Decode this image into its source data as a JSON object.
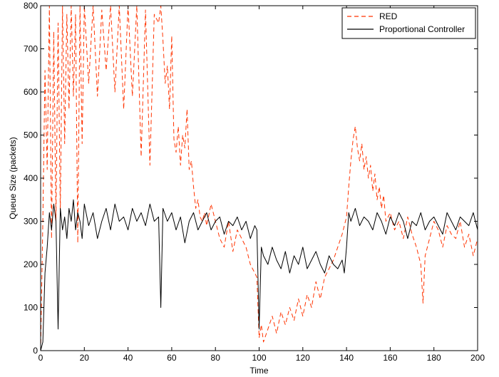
{
  "chart_data": {
    "type": "line",
    "title": "",
    "xlabel": "Time",
    "ylabel": "Queue Size (packets)",
    "xlim": [
      0,
      200
    ],
    "ylim": [
      0,
      800
    ],
    "xticks": [
      0,
      20,
      40,
      60,
      80,
      100,
      120,
      140,
      160,
      180,
      200
    ],
    "yticks": [
      0,
      100,
      200,
      300,
      400,
      500,
      600,
      700,
      800
    ],
    "grid": false,
    "legend_position": "top-right",
    "series": [
      {
        "name": "RED",
        "color": "#ff3300",
        "dash": "dashed",
        "x": [
          0,
          1,
          2,
          3,
          4,
          5,
          6,
          7,
          8,
          9,
          10,
          11,
          12,
          13,
          14,
          15,
          16,
          17,
          18,
          19,
          20,
          22,
          24,
          26,
          28,
          30,
          32,
          34,
          36,
          38,
          40,
          42,
          44,
          46,
          48,
          50,
          52,
          54,
          55,
          56,
          57,
          58,
          59,
          60,
          61,
          62,
          63,
          64,
          65,
          66,
          67,
          68,
          69,
          70,
          71,
          72,
          73,
          74,
          75,
          76,
          78,
          80,
          82,
          84,
          86,
          88,
          90,
          92,
          94,
          96,
          98,
          99,
          100,
          101,
          102,
          104,
          106,
          108,
          110,
          112,
          114,
          116,
          118,
          120,
          122,
          124,
          126,
          128,
          130,
          132,
          134,
          136,
          138,
          140,
          141,
          142,
          143,
          144,
          145,
          146,
          147,
          148,
          149,
          150,
          151,
          152,
          153,
          154,
          155,
          156,
          157,
          158,
          160,
          162,
          164,
          166,
          168,
          170,
          172,
          174,
          175,
          176,
          178,
          180,
          182,
          184,
          186,
          188,
          190,
          192,
          194,
          196,
          198,
          200
        ],
        "y": [
          0,
          300,
          650,
          420,
          800,
          260,
          740,
          300,
          760,
          320,
          800,
          480,
          780,
          560,
          800,
          590,
          780,
          250,
          800,
          480,
          800,
          620,
          800,
          590,
          790,
          650,
          800,
          600,
          800,
          560,
          800,
          590,
          800,
          450,
          790,
          430,
          780,
          760,
          800,
          720,
          620,
          660,
          560,
          730,
          490,
          460,
          520,
          430,
          500,
          470,
          560,
          420,
          440,
          380,
          330,
          350,
          310,
          300,
          320,
          290,
          340,
          300,
          260,
          240,
          300,
          230,
          280,
          260,
          240,
          200,
          180,
          170,
          30,
          60,
          20,
          50,
          80,
          40,
          90,
          60,
          100,
          70,
          120,
          80,
          130,
          100,
          160,
          120,
          170,
          190,
          210,
          240,
          270,
          310,
          380,
          440,
          490,
          520,
          470,
          440,
          480,
          420,
          450,
          400,
          430,
          370,
          410,
          350,
          380,
          330,
          360,
          300,
          320,
          280,
          300,
          260,
          310,
          270,
          240,
          200,
          110,
          220,
          260,
          300,
          280,
          240,
          290,
          270,
          260,
          300,
          240,
          270,
          220,
          260
        ]
      },
      {
        "name": "Proportional Controller",
        "color": "#000000",
        "dash": "solid",
        "x": [
          0,
          1,
          2,
          3,
          4,
          5,
          6,
          7,
          8,
          9,
          10,
          11,
          12,
          13,
          14,
          15,
          16,
          17,
          18,
          19,
          20,
          22,
          24,
          26,
          28,
          30,
          32,
          34,
          36,
          38,
          40,
          42,
          44,
          46,
          48,
          50,
          52,
          54,
          55,
          56,
          58,
          60,
          62,
          64,
          66,
          68,
          70,
          72,
          74,
          76,
          78,
          80,
          82,
          84,
          86,
          88,
          90,
          92,
          94,
          96,
          98,
          99,
          100,
          101,
          102,
          104,
          106,
          108,
          110,
          112,
          114,
          116,
          118,
          120,
          122,
          124,
          126,
          128,
          130,
          132,
          134,
          136,
          138,
          139,
          140,
          141,
          142,
          144,
          146,
          148,
          150,
          152,
          154,
          156,
          158,
          160,
          162,
          164,
          166,
          168,
          170,
          172,
          174,
          176,
          178,
          180,
          182,
          184,
          186,
          188,
          190,
          192,
          194,
          196,
          198,
          200
        ],
        "y": [
          0,
          20,
          180,
          240,
          320,
          280,
          340,
          300,
          50,
          330,
          280,
          310,
          260,
          330,
          300,
          350,
          280,
          320,
          300,
          260,
          340,
          290,
          320,
          260,
          300,
          330,
          280,
          340,
          300,
          310,
          280,
          330,
          300,
          320,
          290,
          340,
          300,
          310,
          100,
          330,
          300,
          320,
          280,
          310,
          250,
          300,
          320,
          280,
          300,
          320,
          280,
          300,
          310,
          270,
          300,
          290,
          310,
          280,
          300,
          260,
          290,
          280,
          50,
          240,
          220,
          200,
          240,
          210,
          190,
          230,
          180,
          220,
          200,
          240,
          190,
          210,
          230,
          200,
          180,
          220,
          200,
          190,
          210,
          180,
          240,
          320,
          300,
          330,
          290,
          310,
          300,
          280,
          320,
          300,
          270,
          310,
          290,
          320,
          300,
          260,
          300,
          290,
          320,
          280,
          300,
          310,
          290,
          270,
          320,
          300,
          280,
          310,
          300,
          290,
          320,
          280
        ]
      }
    ]
  }
}
